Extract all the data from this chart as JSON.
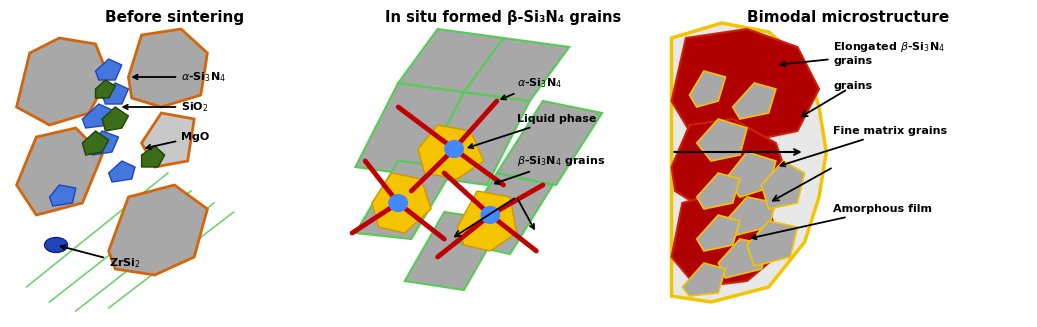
{
  "title1": "Before sintering",
  "title2": "In situ formed β-Si₃N₄ grains",
  "title3": "Bimodal microstructure",
  "bg_color": "#ffffff",
  "gray_color": "#a8a8a8",
  "gray_light": "#c8c8c8",
  "orange_color": "#d4650a",
  "blue_color": "#2244bb",
  "blue_light": "#4477dd",
  "green_color": "#3a6e1a",
  "yellow_color": "#f5c400",
  "red_color": "#c00000",
  "light_green_line": "#55cc55",
  "dark_red": "#b00000"
}
